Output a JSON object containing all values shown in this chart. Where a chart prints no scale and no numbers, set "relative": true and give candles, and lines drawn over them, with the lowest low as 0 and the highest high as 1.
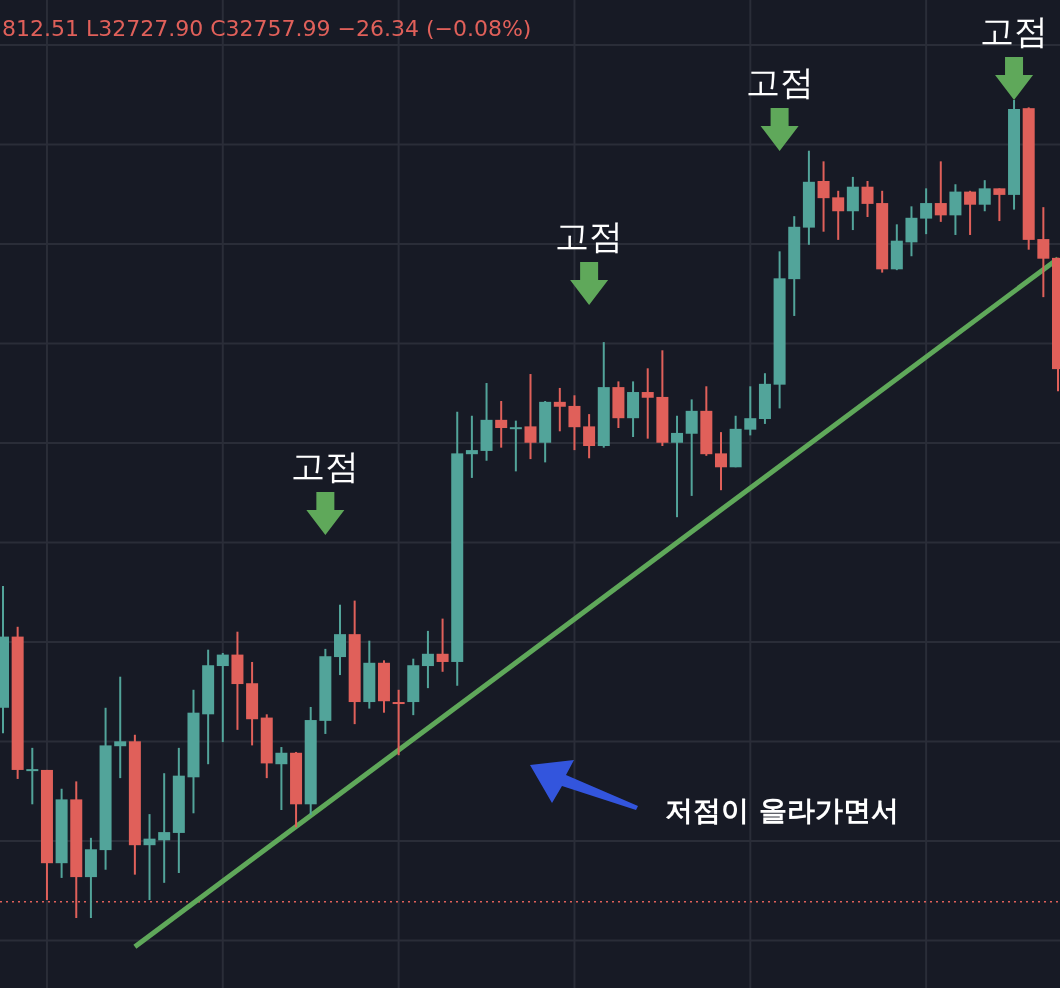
{
  "chart_data": {
    "type": "candlestick",
    "title": "812.51 L32727.90 C32757.99 −26.34 (−0.08%)",
    "relative": true,
    "grid": true,
    "categories": [
      null,
      null,
      null,
      null,
      null,
      null,
      null,
      null,
      null,
      null,
      null,
      null,
      null,
      null,
      null,
      null,
      null,
      null,
      null,
      null,
      null,
      null,
      null,
      null,
      null,
      null,
      null,
      null,
      null,
      null,
      null,
      null,
      null,
      null,
      null,
      null,
      null,
      null,
      null,
      null,
      null,
      null,
      null,
      null,
      null,
      null,
      null,
      null,
      null,
      null,
      null,
      null,
      null,
      null,
      null,
      null,
      null,
      null,
      null,
      null,
      null,
      null,
      null,
      null,
      null,
      null,
      null,
      null,
      null,
      null,
      null,
      null,
      null
    ],
    "ohlc": [
      [
        0.257,
        0.406,
        0.226,
        0.344
      ],
      [
        0.344,
        0.356,
        0.17,
        0.181
      ],
      [
        0.18,
        0.208,
        0.139,
        0.182
      ],
      [
        0.181,
        0.181,
        0.022,
        0.067
      ],
      [
        0.067,
        0.158,
        0.049,
        0.145
      ],
      [
        0.145,
        0.167,
        0,
        0.05
      ],
      [
        0.05,
        0.098,
        0,
        0.084
      ],
      [
        0.083,
        0.257,
        0.059,
        0.211
      ],
      [
        0.21,
        0.295,
        0.171,
        0.216
      ],
      [
        0.216,
        0.224,
        0.053,
        0.089
      ],
      [
        0.089,
        0.127,
        0.022,
        0.097
      ],
      [
        0.095,
        0.177,
        0.043,
        0.105
      ],
      [
        0.104,
        0.208,
        0.055,
        0.174
      ],
      [
        0.172,
        0.279,
        0.128,
        0.251
      ],
      [
        0.249,
        0.328,
        0.188,
        0.309
      ],
      [
        0.308,
        0.324,
        0.215,
        0.322
      ],
      [
        0.322,
        0.35,
        0.23,
        0.286
      ],
      [
        0.287,
        0.313,
        0.211,
        0.243
      ],
      [
        0.245,
        0.249,
        0.171,
        0.189
      ],
      [
        0.188,
        0.209,
        0.132,
        0.202
      ],
      [
        0.202,
        0.203,
        0.111,
        0.139
      ],
      [
        0.139,
        0.258,
        0.126,
        0.242
      ],
      [
        0.241,
        0.329,
        0.225,
        0.32
      ],
      [
        0.319,
        0.383,
        0.297,
        0.347
      ],
      [
        0.347,
        0.388,
        0.237,
        0.264
      ],
      [
        0.264,
        0.339,
        0.256,
        0.312
      ],
      [
        0.312,
        0.315,
        0.251,
        0.265
      ],
      [
        0.264,
        0.279,
        0.199,
        0.263
      ],
      [
        0.264,
        0.317,
        0.248,
        0.309
      ],
      [
        0.308,
        0.351,
        0.281,
        0.323
      ],
      [
        0.323,
        0.366,
        0.301,
        0.313
      ],
      [
        0.313,
        0.619,
        0.284,
        0.568
      ],
      [
        0.567,
        0.614,
        0.538,
        0.572
      ],
      [
        0.571,
        0.654,
        0.559,
        0.609
      ],
      [
        0.609,
        0.632,
        0.575,
        0.599
      ],
      [
        0.599,
        0.608,
        0.546,
        0.6
      ],
      [
        0.601,
        0.665,
        0.561,
        0.581
      ],
      [
        0.581,
        0.632,
        0.557,
        0.631
      ],
      [
        0.631,
        0.648,
        0.595,
        0.625
      ],
      [
        0.626,
        0.639,
        0.572,
        0.6
      ],
      [
        0.601,
        0.616,
        0.562,
        0.577
      ],
      [
        0.577,
        0.704,
        0.575,
        0.649
      ],
      [
        0.649,
        0.656,
        0.599,
        0.611
      ],
      [
        0.611,
        0.656,
        0.588,
        0.643
      ],
      [
        0.643,
        0.672,
        0.586,
        0.636
      ],
      [
        0.637,
        0.694,
        0.577,
        0.581
      ],
      [
        0.581,
        0.614,
        0.49,
        0.593
      ],
      [
        0.592,
        0.634,
        0.516,
        0.62
      ],
      [
        0.62,
        0.65,
        0.565,
        0.567
      ],
      [
        0.568,
        0.594,
        0.523,
        0.551
      ],
      [
        0.551,
        0.614,
        0.551,
        0.598
      ],
      [
        0.597,
        0.65,
        0.59,
        0.611
      ],
      [
        0.61,
        0.666,
        0.604,
        0.653
      ],
      [
        0.652,
        0.815,
        0.623,
        0.782
      ],
      [
        0.781,
        0.858,
        0.736,
        0.845
      ],
      [
        0.844,
        0.938,
        0.823,
        0.9
      ],
      [
        0.901,
        0.925,
        0.839,
        0.88
      ],
      [
        0.881,
        0.889,
        0.829,
        0.864
      ],
      [
        0.864,
        0.906,
        0.841,
        0.894
      ],
      [
        0.894,
        0.901,
        0.857,
        0.873
      ],
      [
        0.874,
        0.889,
        0.789,
        0.793
      ],
      [
        0.793,
        0.848,
        0.792,
        0.828
      ],
      [
        0.826,
        0.87,
        0.809,
        0.856
      ],
      [
        0.855,
        0.892,
        0.836,
        0.874
      ],
      [
        0.874,
        0.925,
        0.851,
        0.859
      ],
      [
        0.859,
        0.897,
        0.835,
        0.888
      ],
      [
        0.888,
        0.889,
        0.835,
        0.872
      ],
      [
        0.872,
        0.902,
        0.864,
        0.892
      ],
      [
        0.892,
        0.892,
        0.852,
        0.884
      ],
      [
        0.884,
        1,
        0.866,
        0.989
      ],
      [
        0.99,
        0.991,
        0.817,
        0.829
      ],
      [
        0.83,
        0.869,
        0.759,
        0.806
      ],
      [
        0.807,
        0.807,
        0.644,
        0.671
      ]
    ],
    "colors": [
      "#52a49a",
      "#e0605a",
      "#52a49a",
      "#e0605a",
      "#52a49a",
      "#e0605a",
      "#52a49a",
      "#52a49a",
      "#52a49a",
      "#e0605a",
      "#52a49a",
      "#52a49a",
      "#52a49a",
      "#52a49a",
      "#52a49a",
      "#52a49a",
      "#e0605a",
      "#e0605a",
      "#e0605a",
      "#52a49a",
      "#e0605a",
      "#52a49a",
      "#52a49a",
      "#52a49a",
      "#e0605a",
      "#52a49a",
      "#e0605a",
      "#e0605a",
      "#52a49a",
      "#52a49a",
      "#e0605a",
      "#52a49a",
      "#52a49a",
      "#52a49a",
      "#e0605a",
      "#52a49a",
      "#e0605a",
      "#52a49a",
      "#e0605a",
      "#e0605a",
      "#e0605a",
      "#52a49a",
      "#e0605a",
      "#52a49a",
      "#e0605a",
      "#e0605a",
      "#52a49a",
      "#52a49a",
      "#e0605a",
      "#e0605a",
      "#52a49a",
      "#52a49a",
      "#52a49a",
      "#52a49a",
      "#52a49a",
      "#52a49a",
      "#e0605a",
      "#e0605a",
      "#52a49a",
      "#e0605a",
      "#e0605a",
      "#52a49a",
      "#52a49a",
      "#52a49a",
      "#e0605a",
      "#52a49a",
      "#e0605a",
      "#52a49a",
      "#e0605a",
      "#52a49a",
      "#e0605a",
      "#e0605a",
      "#e0605a"
    ],
    "series": [
      {
        "type": "line",
        "color": "#5fa85a",
        "values": [
          null,
          null,
          null,
          null,
          null,
          null,
          null,
          null,
          null,
          -0.035,
          null,
          null,
          null,
          null,
          null,
          null,
          null,
          null,
          null,
          null,
          null,
          null,
          null,
          null,
          null,
          null,
          null,
          null,
          null,
          null,
          null,
          null,
          null,
          null,
          null,
          null,
          null,
          null,
          null,
          null,
          null,
          null,
          null,
          null,
          null,
          null,
          null,
          null,
          null,
          null,
          null,
          null,
          null,
          null,
          null,
          null,
          null,
          null,
          null,
          null,
          null,
          null,
          null,
          null,
          null,
          null,
          null,
          null,
          null,
          null,
          null,
          null,
          0.806
        ]
      }
    ],
    "ref_lines": [
      {
        "axis": "y",
        "value": 0.02,
        "color": "#e0605a",
        "line_style": "dotted"
      }
    ],
    "annotations": [
      "고점",
      "고점",
      "고점",
      "고점",
      "저점이 올라가면서"
    ]
  }
}
